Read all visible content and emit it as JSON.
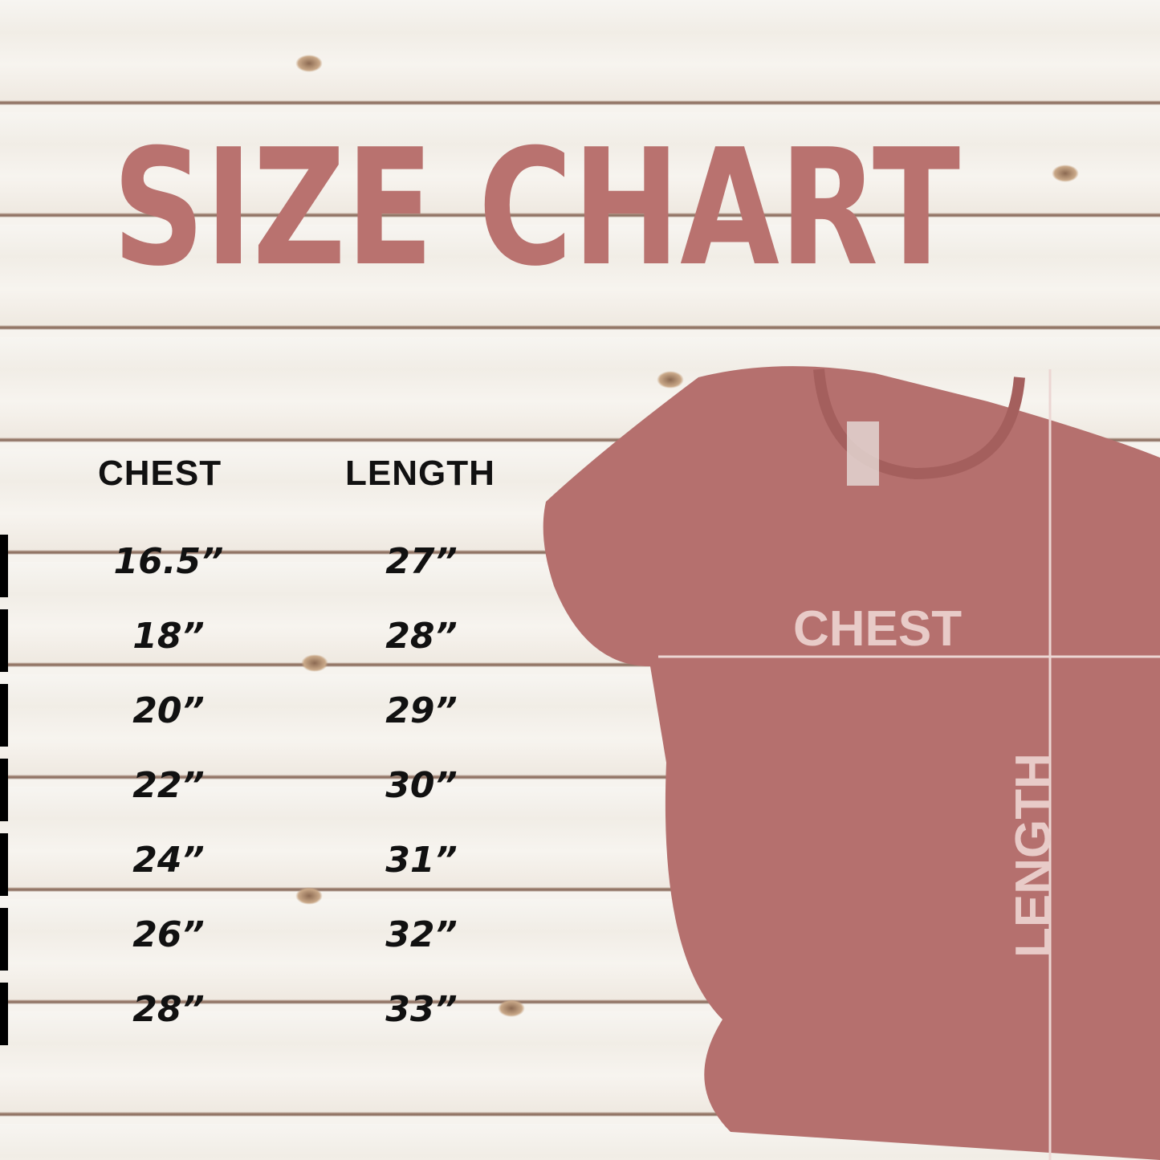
{
  "title": "SIZE CHART",
  "headers": {
    "chest": "CHEST",
    "length": "LENGTH"
  },
  "rows": [
    {
      "chest": "16.5”",
      "length": "27”"
    },
    {
      "chest": "18”",
      "length": "28”"
    },
    {
      "chest": "20”",
      "length": "29”"
    },
    {
      "chest": "22”",
      "length": "30”"
    },
    {
      "chest": "24”",
      "length": "31”"
    },
    {
      "chest": "26”",
      "length": "32”"
    },
    {
      "chest": "28”",
      "length": "33”"
    }
  ],
  "shirt_labels": {
    "chest": "CHEST",
    "length": "LENGTH"
  },
  "colors": {
    "accent": "#b9726f",
    "shirt": "#b5706e",
    "text": "#111111"
  }
}
